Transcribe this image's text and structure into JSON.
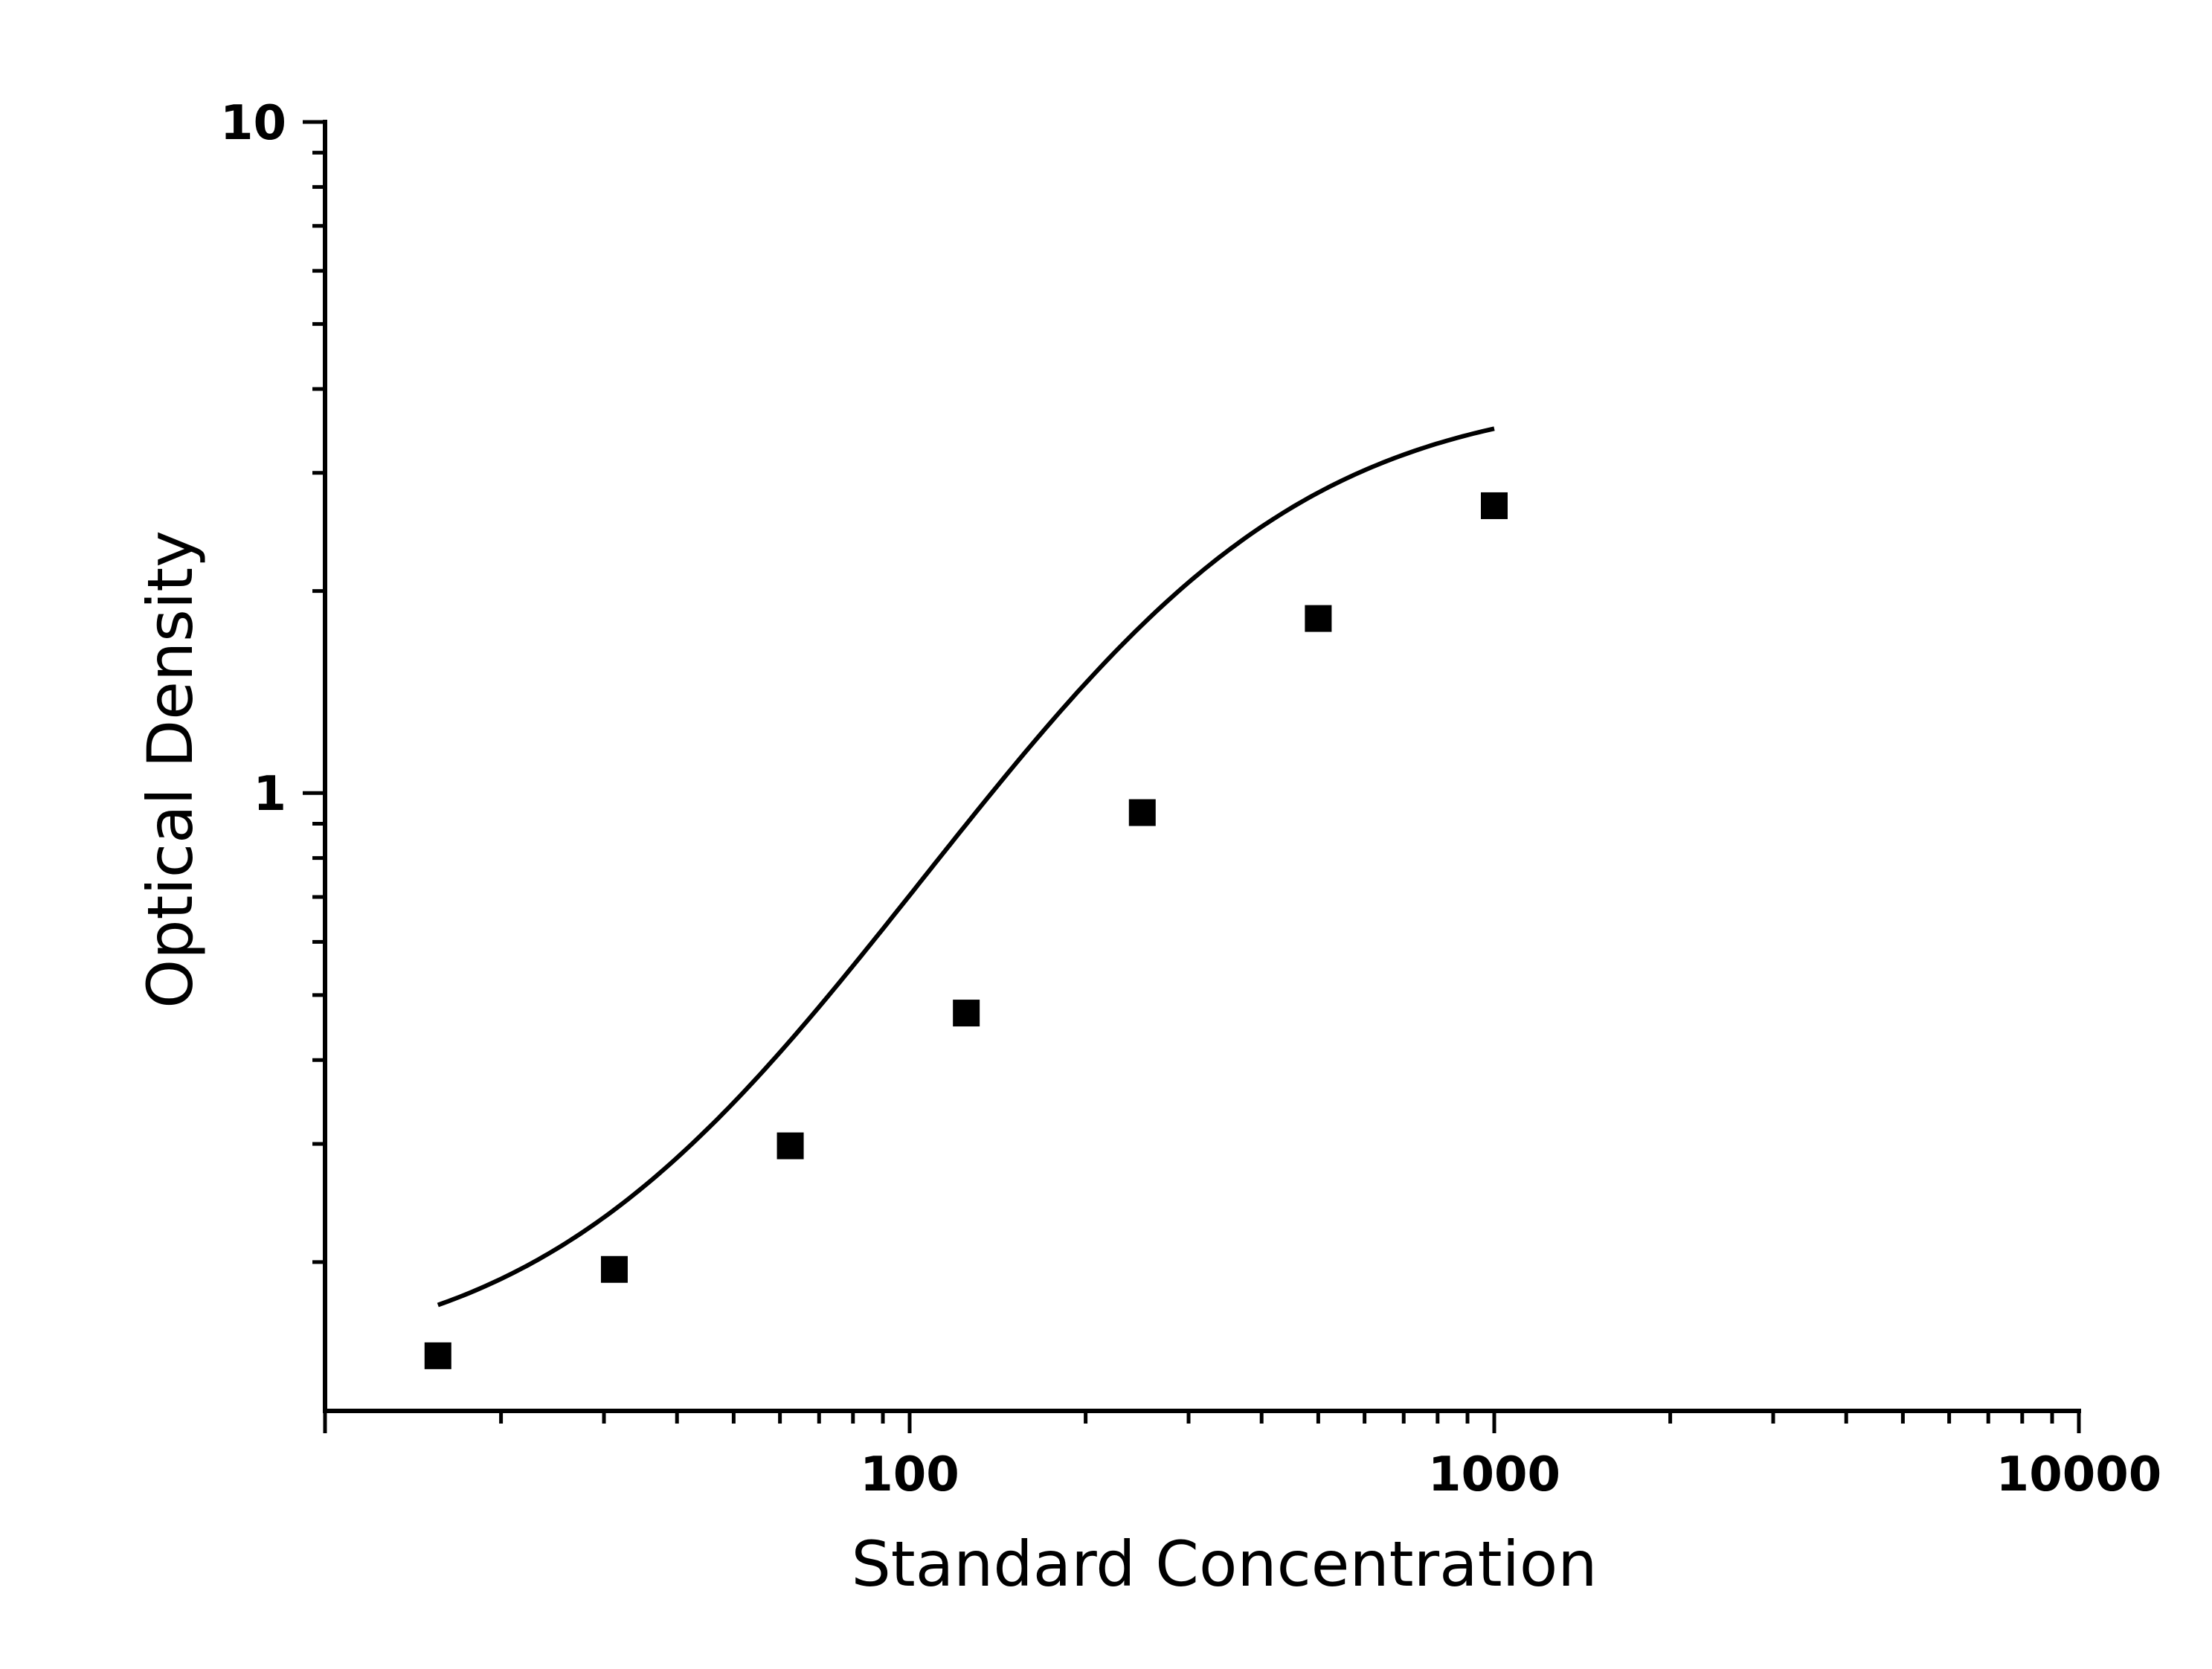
{
  "chart_data": {
    "type": "scatter",
    "xlabel": "Standard Concentration",
    "ylabel": "Optical Density",
    "x_scale": "log",
    "y_scale": "log",
    "xlim": [
      10,
      10000
    ],
    "ylim": [
      0.12,
      10
    ],
    "x_ticks": [
      {
        "value": 100,
        "label": "100"
      },
      {
        "value": 1000,
        "label": "1000"
      },
      {
        "value": 10000,
        "label": "10000"
      }
    ],
    "y_ticks": [
      {
        "value": 1,
        "label": "1"
      },
      {
        "value": 10,
        "label": "10"
      }
    ],
    "grid": false,
    "legend": "none",
    "series": [
      {
        "marker": "square",
        "color": "#000000",
        "points": [
          {
            "x": 15.6,
            "y": 0.145
          },
          {
            "x": 31.25,
            "y": 0.195
          },
          {
            "x": 62.5,
            "y": 0.298
          },
          {
            "x": 125,
            "y": 0.47
          },
          {
            "x": 250,
            "y": 0.935
          },
          {
            "x": 500,
            "y": 1.82
          },
          {
            "x": 1000,
            "y": 2.68
          }
        ]
      }
    ],
    "fit": {
      "type": "four-parameter-logistic",
      "color": "#000000",
      "x_range": [
        15.6,
        1000
      ],
      "params": {
        "A": 0.139,
        "B": 1.6,
        "C": 300,
        "D": 3.98
      }
    }
  }
}
